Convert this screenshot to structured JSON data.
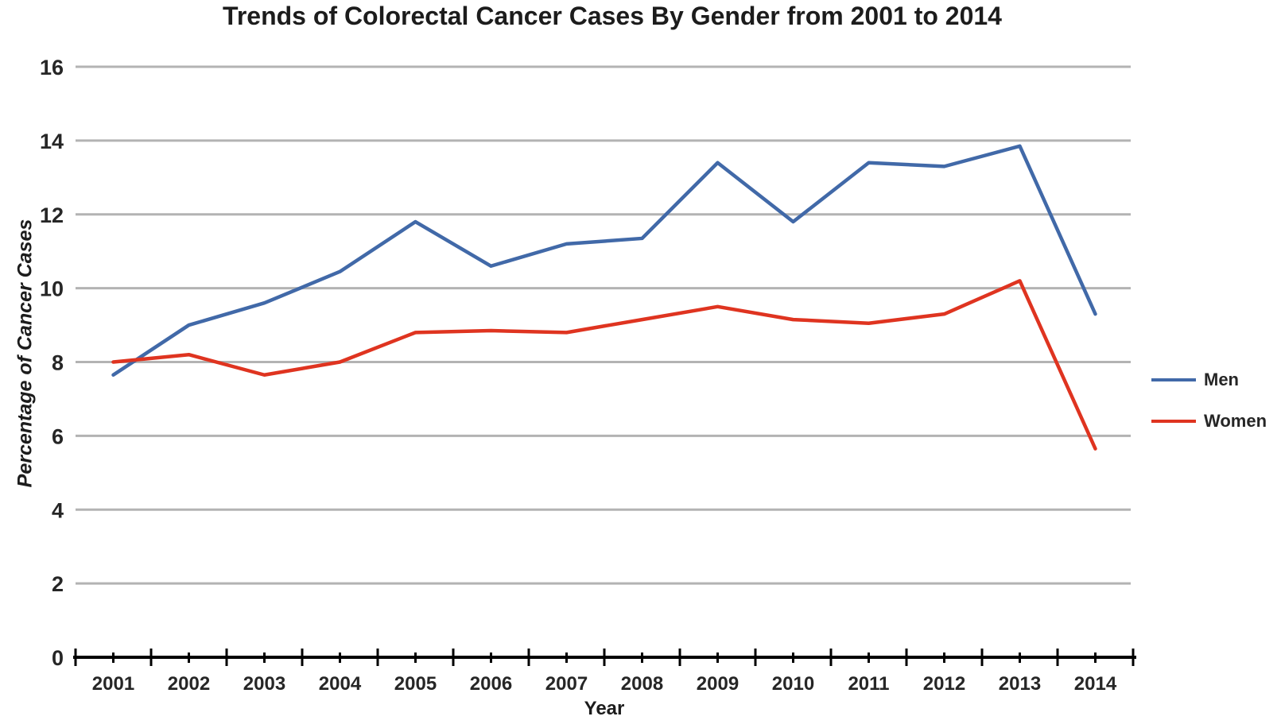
{
  "chart_data": {
    "type": "line",
    "title": "Trends of Colorectal Cancer Cases By Gender from 2001 to 2014",
    "xlabel": "Year",
    "ylabel": "Percentage of Cancer Cases",
    "categories": [
      "2001",
      "2002",
      "2003",
      "2004",
      "2005",
      "2006",
      "2007",
      "2008",
      "2009",
      "2010",
      "2011",
      "2012",
      "2013",
      "2014"
    ],
    "ylim": [
      0,
      16
    ],
    "y_tick_step": 2,
    "y_tick_labels": [
      "0",
      "2",
      "4",
      "6",
      "8",
      "10",
      "12",
      "14",
      "16"
    ],
    "grid": "horizontal-only",
    "legend_position": "right",
    "series": [
      {
        "name": "Men",
        "color": "#4169a8",
        "values": [
          7.65,
          9.0,
          9.6,
          10.45,
          11.8,
          10.6,
          11.2,
          11.35,
          13.4,
          11.8,
          13.4,
          13.3,
          13.85,
          9.3
        ]
      },
      {
        "name": "Women",
        "color": "#df3420",
        "values": [
          8.0,
          8.2,
          7.65,
          8.0,
          8.8,
          8.85,
          8.8,
          9.15,
          9.5,
          9.15,
          9.05,
          9.3,
          10.2,
          5.65
        ]
      }
    ]
  },
  "colors": {
    "gridline": "#b3b3b3",
    "axis": "#000000",
    "tick_text": "#262626"
  }
}
